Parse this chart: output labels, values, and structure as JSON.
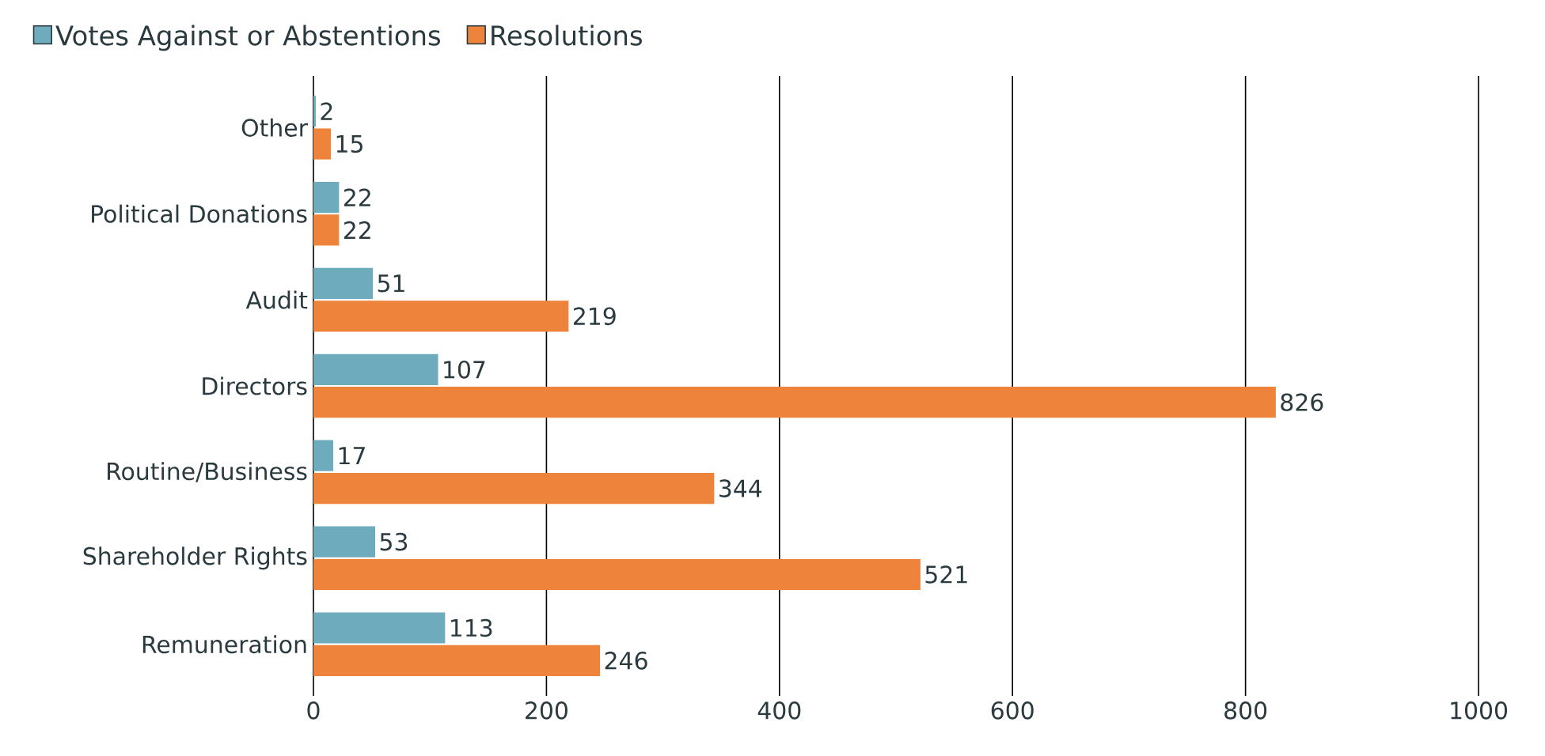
{
  "chart_data": {
    "type": "bar",
    "orientation": "horizontal",
    "categories": [
      "Other",
      "Political Donations",
      "Audit",
      "Directors",
      "Routine/Business",
      "Shareholder Rights",
      "Remuneration"
    ],
    "series": [
      {
        "name": "Votes Against or Abstentions",
        "color": "#6eabbd",
        "values": [
          2,
          22,
          51,
          107,
          17,
          53,
          113
        ]
      },
      {
        "name": "Resolutions",
        "color": "#ee843c",
        "values": [
          15,
          22,
          219,
          826,
          344,
          521,
          246
        ]
      }
    ],
    "xlim": [
      0,
      1000
    ],
    "xticks": [
      0,
      200,
      400,
      600,
      800,
      1000
    ],
    "grid": "x",
    "legend": "top left",
    "data_labels": true
  }
}
